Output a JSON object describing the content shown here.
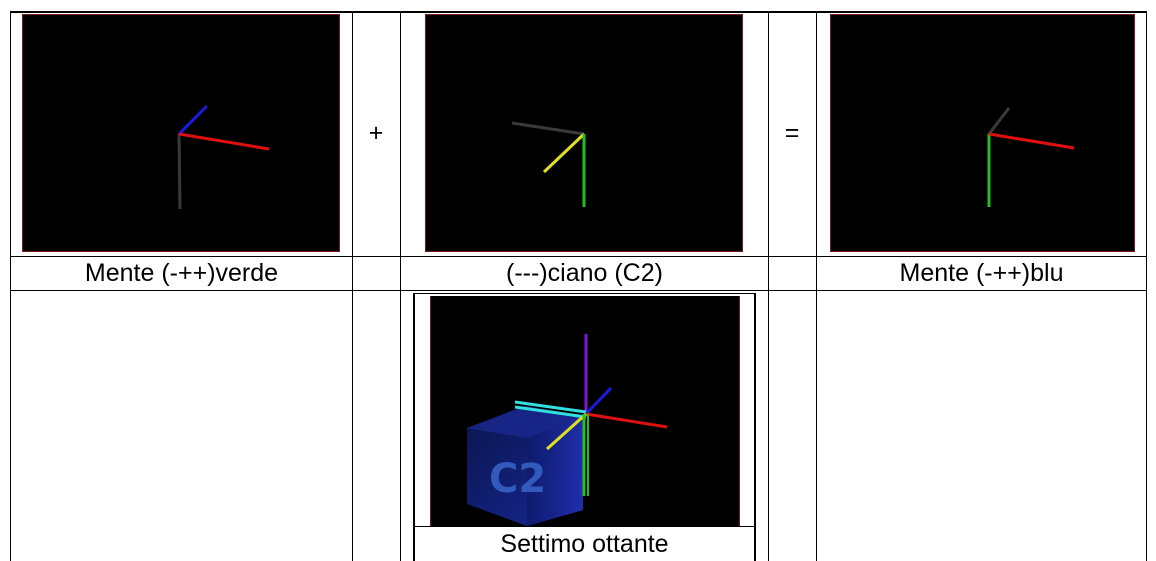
{
  "operators": {
    "plus": "+",
    "equals": "="
  },
  "captions": {
    "left": "Mente (-++)verde",
    "middle": "(---)ciano (C2)",
    "right": "Mente (-++)blu",
    "bottom": "Settimo ottante"
  },
  "cube_label": "C2",
  "colors": {
    "red_axis": "#e01010",
    "blue_axis": "#1a1ae0",
    "green_axis": "#22c022",
    "yellow_axis": "#e0e020",
    "gray_axis": "#3a3a3a",
    "cyan_axis": "#30e0e0",
    "purple_axis": "#7a1ad0",
    "frame_red": "#7a1a1a"
  }
}
